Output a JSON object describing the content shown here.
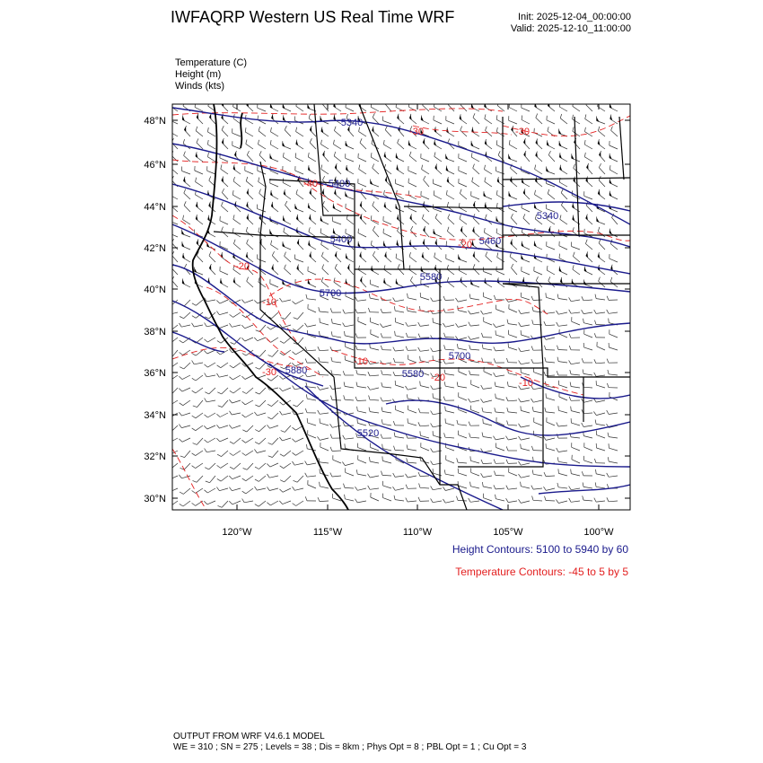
{
  "header": {
    "title": "IWFAQRP Western US Real Time WRF",
    "init": "Init: 2025-12-04_00:00:00",
    "valid": "Valid: 2025-12-10_11:00:00"
  },
  "variables": [
    "Temperature   (C)",
    "Height   (m)",
    "Winds   (kts)"
  ],
  "map": {
    "lat_labels": [
      "48°N",
      "46°N",
      "44°N",
      "42°N",
      "40°N",
      "38°N",
      "36°N",
      "34°N",
      "32°N",
      "30°N"
    ],
    "lon_labels": [
      "120°W",
      "115°W",
      "110°W",
      "105°W",
      "100°W"
    ],
    "height_contour_labels": [
      "5340",
      "5400",
      "5400",
      "5580",
      "5700",
      "5880",
      "5700",
      "5520",
      "5460",
      "5340",
      "5580"
    ],
    "temp_contour_labels": [
      "-30",
      "-30",
      "-40",
      "-20",
      "-10",
      "-10",
      "-20",
      "-10",
      "-20",
      "-30"
    ],
    "colors": {
      "height": "#1a1a8c",
      "temperature": "#e32020",
      "border": "#000000",
      "barb": "#333333"
    }
  },
  "legend": {
    "height": "Height Contours: 5100 to 5940 by 60",
    "temperature": "Temperature Contours: -45 to 5 by 5"
  },
  "footer": {
    "line1": "OUTPUT FROM WRF V4.6.1 MODEL",
    "line2": "WE = 310 ; SN = 275 ; Levels = 38 ; Dis = 8km ; Phys Opt = 8 ; PBL Opt = 1 ; Cu Opt = 3"
  }
}
